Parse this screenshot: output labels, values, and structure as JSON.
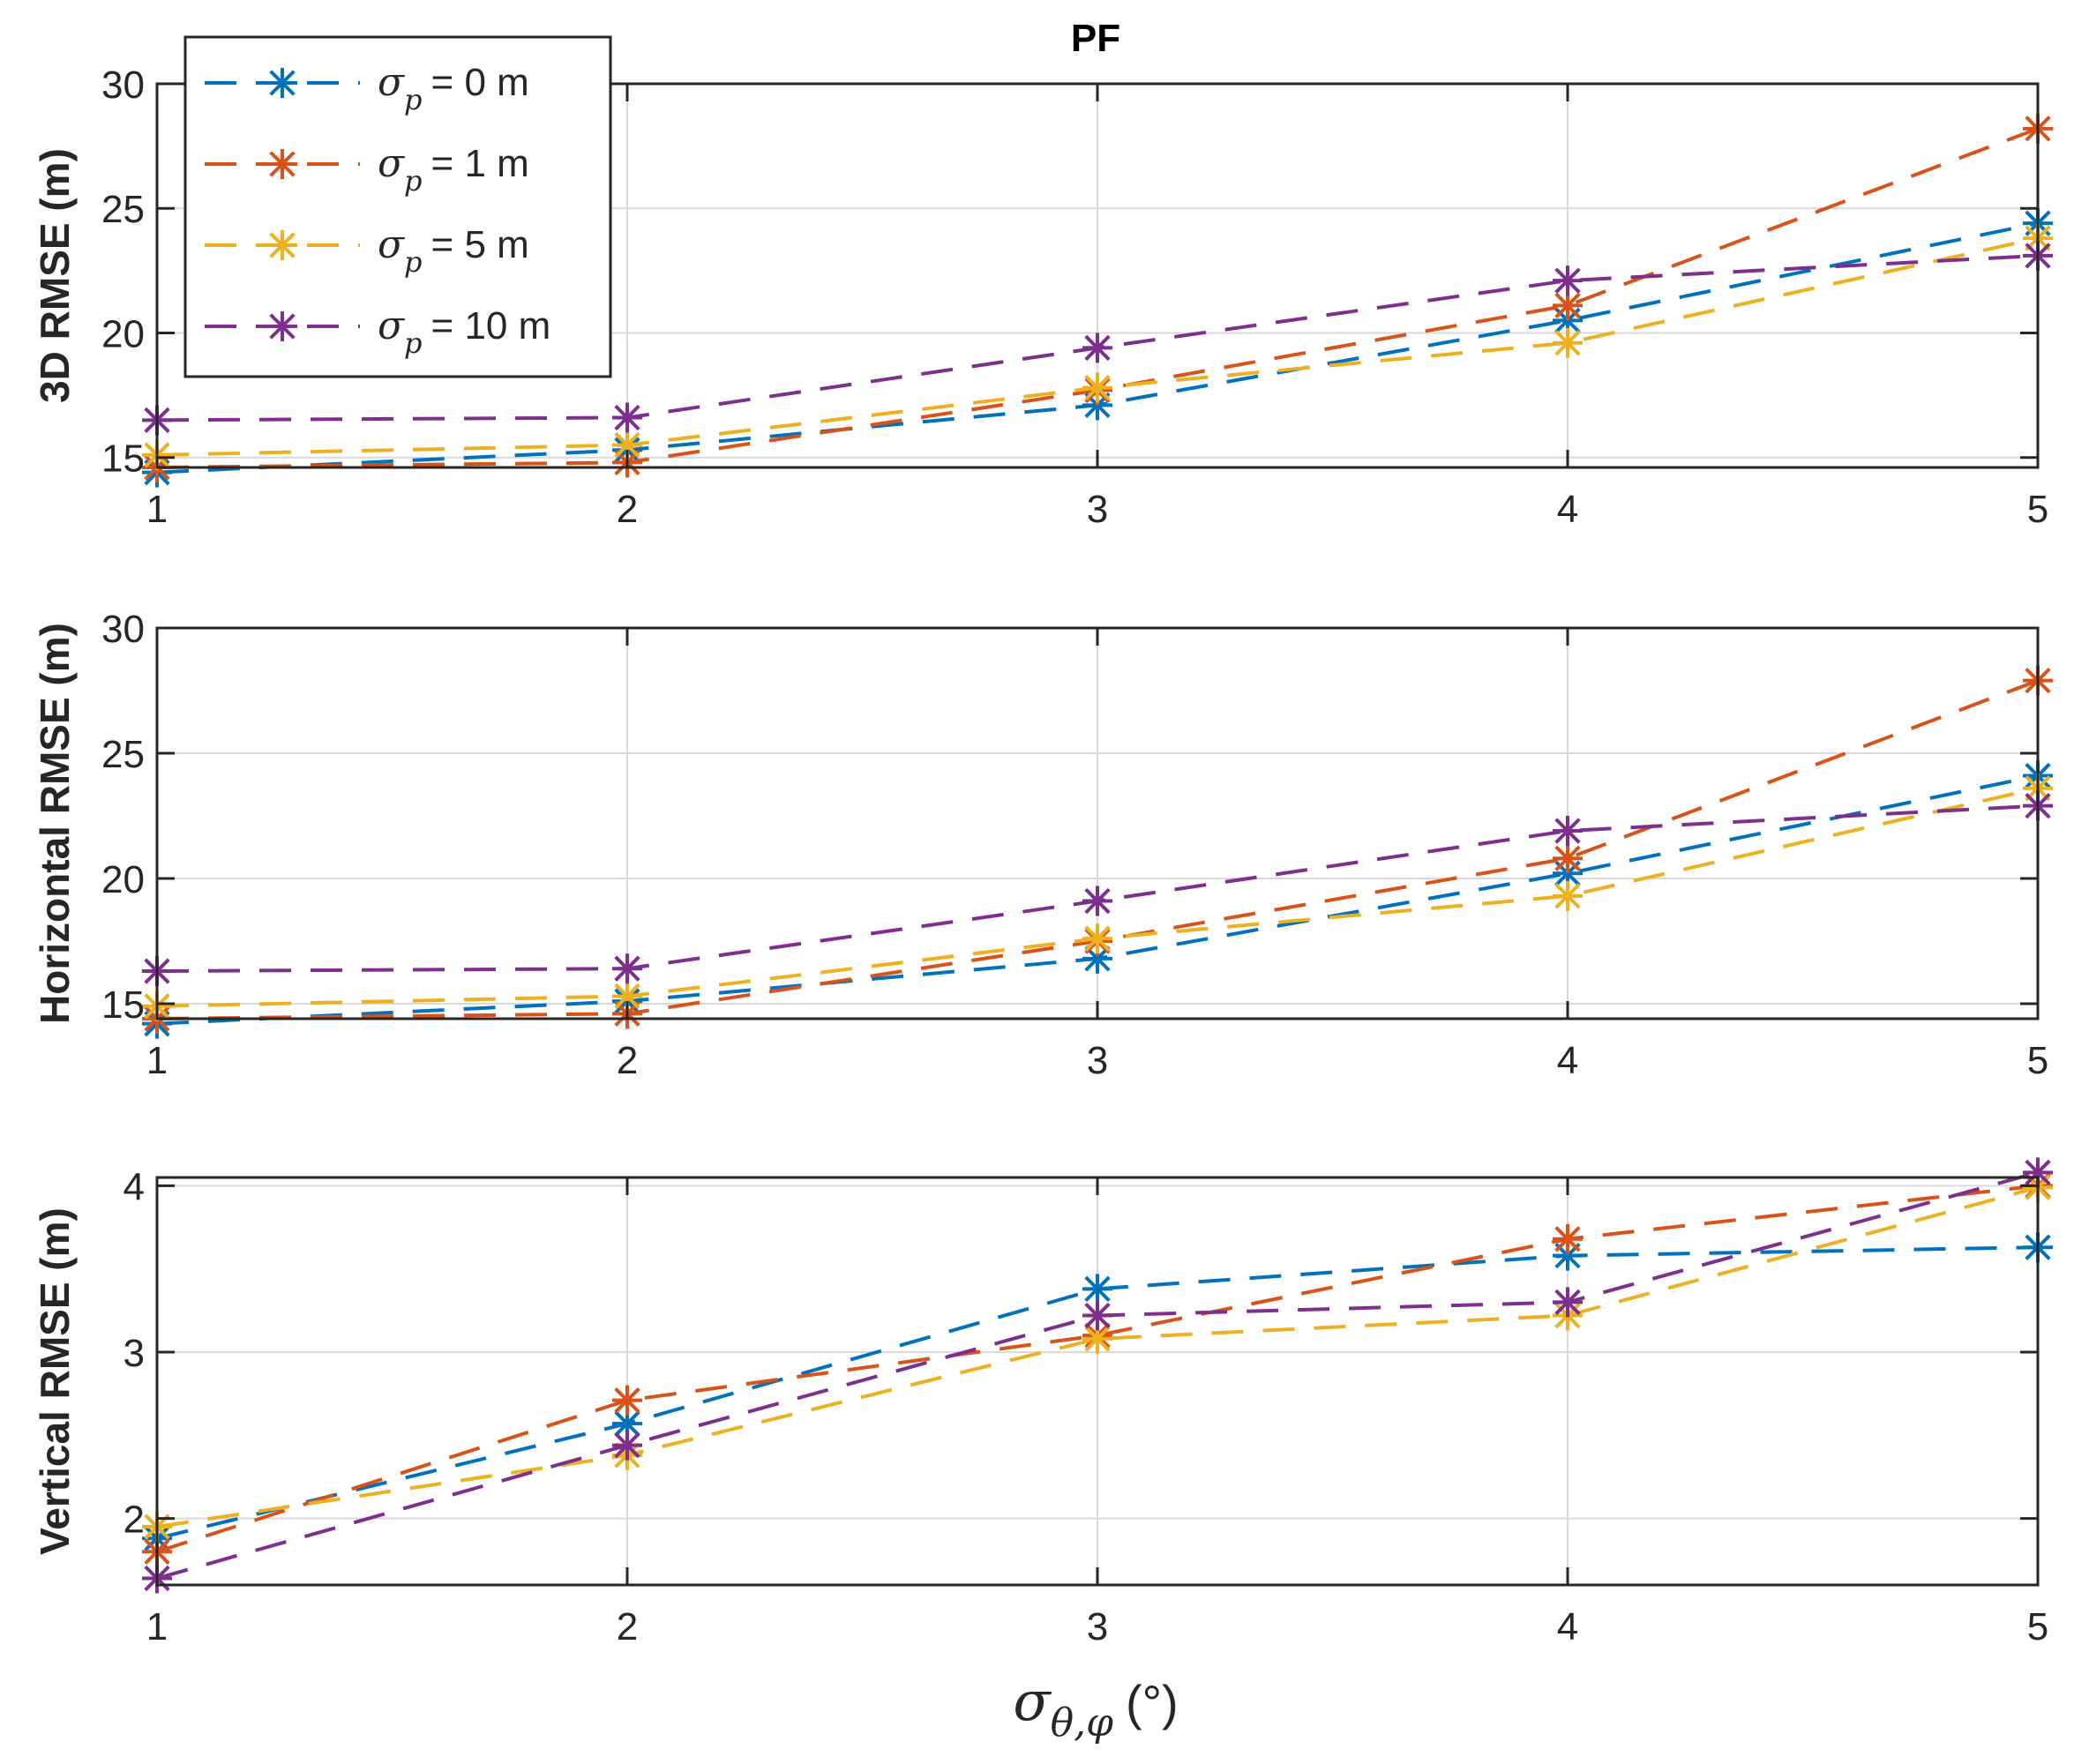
{
  "chart_data": {
    "type": "line",
    "title": "PF",
    "x": [
      1,
      2,
      3,
      4,
      5
    ],
    "xlabel": {
      "symbol": "σ",
      "subscript": "θ,φ",
      "unit": "(°)"
    },
    "legend": {
      "placement": "top-left",
      "entries": [
        {
          "symbol": "σ",
          "subscript": "p",
          "text": "= 0 m"
        },
        {
          "symbol": "σ",
          "subscript": "p",
          "text": "= 1 m"
        },
        {
          "symbol": "σ",
          "subscript": "p",
          "text": "= 5 m"
        },
        {
          "symbol": "σ",
          "subscript": "p",
          "text": "= 10 m"
        }
      ]
    },
    "series_colors": [
      "#0072BD",
      "#D95319",
      "#EDB120",
      "#7E2F8E"
    ],
    "grid": true,
    "subplots": [
      {
        "ylabel": "3D RMSE (m)",
        "ylim": [
          14.6,
          30
        ],
        "yticks": [
          15,
          20,
          25,
          30
        ],
        "xticks": [
          1,
          2,
          3,
          4,
          5
        ],
        "series": [
          {
            "name": "σp = 0 m",
            "values": [
              14.4,
              15.3,
              17.1,
              20.5,
              24.4
            ]
          },
          {
            "name": "σp = 1 m",
            "values": [
              14.6,
              14.8,
              17.7,
              21.1,
              28.2
            ]
          },
          {
            "name": "σp = 5 m",
            "values": [
              15.1,
              15.5,
              17.8,
              19.6,
              23.8
            ]
          },
          {
            "name": "σp = 10 m",
            "values": [
              16.5,
              16.6,
              19.4,
              22.1,
              23.1
            ]
          }
        ]
      },
      {
        "ylabel": "Horizontal RMSE (m)",
        "ylim": [
          14.4,
          30
        ],
        "yticks": [
          15,
          20,
          25,
          30
        ],
        "xticks": [
          1,
          2,
          3,
          4,
          5
        ],
        "series": [
          {
            "name": "σp = 0 m",
            "values": [
              14.2,
              15.1,
              16.8,
              20.2,
              24.1
            ]
          },
          {
            "name": "σp = 1 m",
            "values": [
              14.4,
              14.6,
              17.5,
              20.8,
              27.9
            ]
          },
          {
            "name": "σp = 5 m",
            "values": [
              14.9,
              15.3,
              17.6,
              19.3,
              23.6
            ]
          },
          {
            "name": "σp = 10 m",
            "values": [
              16.3,
              16.4,
              19.1,
              21.9,
              22.9
            ]
          }
        ]
      },
      {
        "ylabel": "Vertical RMSE (m)",
        "ylim": [
          1.6,
          4.05
        ],
        "yticks": [
          2,
          3,
          4
        ],
        "xticks": [
          1,
          2,
          3,
          4,
          5
        ],
        "series": [
          {
            "name": "σp = 0 m",
            "values": [
              1.88,
              2.57,
              3.38,
              3.58,
              3.63
            ]
          },
          {
            "name": "σp = 1 m",
            "values": [
              1.8,
              2.71,
              3.1,
              3.68,
              4.0
            ]
          },
          {
            "name": "σp = 5 m",
            "values": [
              1.95,
              2.38,
              3.08,
              3.22,
              3.99
            ]
          },
          {
            "name": "σp = 10 m",
            "values": [
              1.64,
              2.44,
              3.22,
              3.3,
              4.08
            ]
          }
        ]
      }
    ]
  }
}
